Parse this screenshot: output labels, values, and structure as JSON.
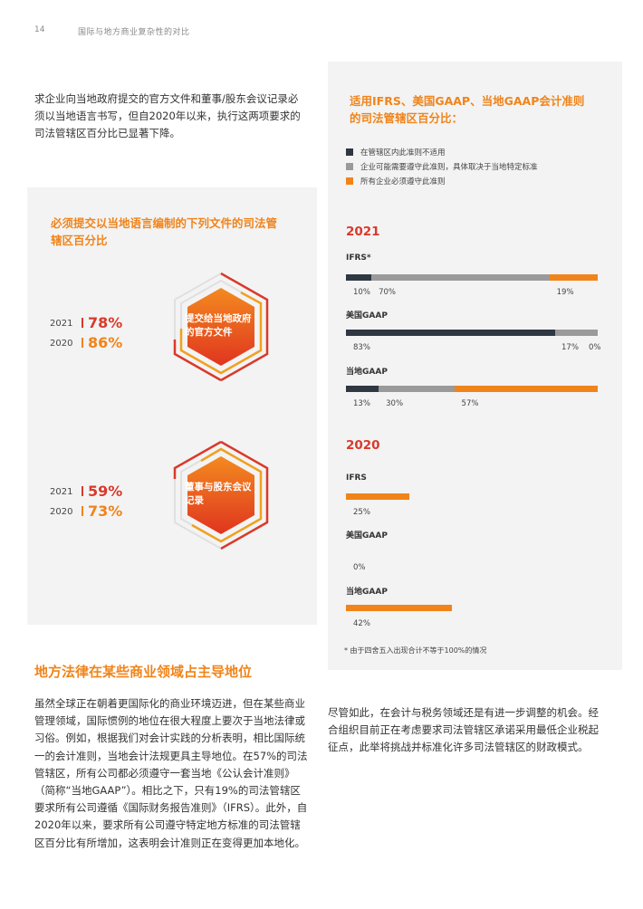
{
  "header": {
    "page_number": "14",
    "title": "国际与地方商业复杂性的对比"
  },
  "intro_text": "求企业向当地政府提交的官方文件和董事/股东会议记录必须以当地语言书写，但自2020年以来，执行这两项要求的司法管辖区百分比已显著下降。",
  "left_panel": {
    "title": "必须提交以当地语言编制的下列文件的司法管辖区百分比",
    "items": [
      {
        "label": "提交给当地政府的官方文件",
        "y2021": "2021",
        "v2021": "78%",
        "y2020": "2020",
        "v2020": "86%"
      },
      {
        "label": "董事与股东会议记录",
        "y2021": "2021",
        "v2021": "59%",
        "y2020": "2020",
        "v2020": "73%"
      }
    ]
  },
  "right_panel": {
    "title": "适用IFRS、美国GAAP、当地GAAP会计准则的司法管辖区百分比：",
    "legend": [
      {
        "label": "在管辖区内此准则不适用",
        "color": "#2e3742"
      },
      {
        "label": "企业可能需要遵守此准则，具体取决于当地特定标准",
        "color": "#9a9a9a"
      },
      {
        "label": "所有企业必须遵守此准则",
        "color": "#f0841a"
      }
    ],
    "y2021": {
      "year": "2021",
      "rows": [
        {
          "label": "IFRS*",
          "values": [
            10,
            70,
            19
          ],
          "labels": [
            "10%",
            "70%",
            "19%"
          ]
        },
        {
          "label": "美国GAAP",
          "values": [
            83,
            17,
            0
          ],
          "labels": [
            "83%",
            "17%",
            "0%"
          ]
        },
        {
          "label": "当地GAAP",
          "values": [
            13,
            30,
            57
          ],
          "labels": [
            "13%",
            "30%",
            "57%"
          ]
        }
      ]
    },
    "y2020": {
      "year": "2020",
      "rows": [
        {
          "label": "IFRS",
          "value": 25,
          "value_label": "25%"
        },
        {
          "label": "美国GAAP",
          "value": 0,
          "value_label": "0%"
        },
        {
          "label": "当地GAAP",
          "value": 42,
          "value_label": "42%"
        }
      ]
    },
    "footnote": "* 由于四舍五入出现合计不等于100%的情况"
  },
  "section_heading": "地方法律在某些商业领域占主导地位",
  "body_left": "虽然全球正在朝着更国际化的商业环境迈进，但在某些商业管理领域，国际惯例的地位在很大程度上要次于当地法律或习俗。例如，根据我们对会计实践的分析表明，相比国际统一的会计准则，当地会计法规更具主导地位。在57%的司法管辖区，所有公司都必须遵守一套当地《公认会计准则》（简称“当地GAAP”）。相比之下，只有19%的司法管辖区要求所有公司遵循《国际财务报告准则》（IFRS）。此外，自2020年以来，要求所有公司遵守特定地方标准的司法管辖区百分比有所增加，这表明会计准则正在变得更加本地化。",
  "body_right": "尽管如此，在会计与税务领域还是有进一步调整的机会。经合组织目前正在考虑要求司法管辖区承诺采用最低企业税起征点，此举将挑战并标准化许多司法管辖区的财政模式。"
}
